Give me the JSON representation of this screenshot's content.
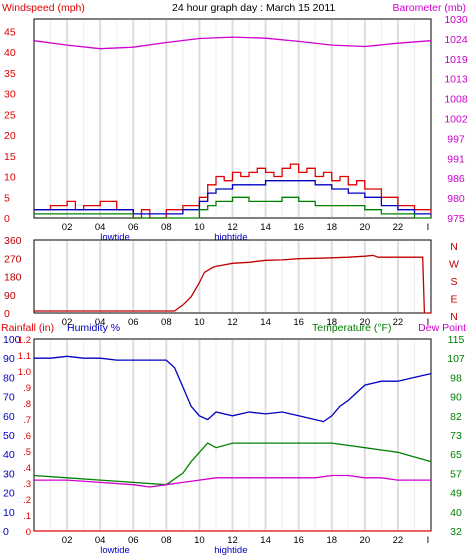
{
  "header": {
    "windspeed_label": "Windspeed (mph)",
    "title": "24 hour graph day : March 15 2011",
    "barometer_label": "Barometer (mb)"
  },
  "panel3_labels": {
    "rainfall": "Rainfall (in)",
    "humidity": "Humidity %",
    "temperature": "Temperature (°F)",
    "dewpoint": "Dew Point"
  },
  "tide_labels": [
    {
      "text": "lowtide",
      "hour": 4.9
    },
    {
      "text": "hightide",
      "hour": 11.9
    }
  ],
  "colors": {
    "wind_gust": "#e00000",
    "wind_avg": "#0000c0",
    "wind_low": "#008000",
    "barometer": "#d000d0",
    "direction": "#c00000",
    "humidity": "#0000c0",
    "temperature": "#008000",
    "dewpoint": "#d000d0",
    "rainfall": "#e00000",
    "grid": "#cccccc"
  },
  "chart_data": [
    {
      "type": "line",
      "x_ticks": [
        "02",
        "04",
        "06",
        "08",
        "10",
        "12",
        "14",
        "16",
        "18",
        "20",
        "22",
        "I"
      ],
      "x_tick_hours": [
        2,
        4,
        6,
        8,
        10,
        12,
        14,
        16,
        18,
        20,
        22,
        24
      ],
      "xlim": [
        0,
        24
      ],
      "y_ticks": [
        "0",
        "5",
        "10",
        "15",
        "20",
        "25",
        "30",
        "35",
        "40",
        "45"
      ],
      "ylim": [
        0,
        48
      ],
      "y2_ticks": [
        "975",
        "980",
        "986",
        "991",
        "997",
        "1002",
        "1008",
        "1013",
        "1019",
        "1024",
        "1030"
      ],
      "y2lim": [
        975,
        1030
      ],
      "series": [
        {
          "name": "Windspeed (mph)",
          "axis": "left",
          "color_key": "wind_gust",
          "x": [
            0,
            1,
            2,
            2.5,
            3,
            4,
            5,
            6,
            6.5,
            7,
            8,
            9,
            10,
            10.5,
            11,
            11.5,
            12,
            12.5,
            13,
            13.5,
            14,
            14.5,
            15,
            15.5,
            16,
            16.5,
            17,
            17.5,
            18,
            18.5,
            19,
            19.5,
            20,
            21,
            22,
            23,
            24
          ],
          "y": [
            2,
            3,
            4,
            2,
            3,
            4,
            2,
            0,
            2,
            0,
            2,
            3,
            5,
            8,
            10,
            9,
            11,
            10,
            11,
            12,
            11,
            10,
            12,
            13,
            11,
            12,
            10,
            11,
            9,
            10,
            8,
            9,
            7,
            5,
            3,
            2,
            1
          ]
        },
        {
          "name": "wind_avg",
          "axis": "left",
          "color_key": "wind_avg",
          "x": [
            0,
            2,
            4,
            6,
            8,
            9,
            10,
            10.5,
            11,
            12,
            13,
            14,
            15,
            16,
            17,
            18,
            19,
            20,
            21,
            22,
            23,
            24
          ],
          "y": [
            2,
            2,
            2,
            1,
            1,
            2,
            4,
            6,
            7,
            8,
            8,
            9,
            9,
            9,
            8,
            7,
            6,
            5,
            3,
            2,
            1,
            1
          ]
        },
        {
          "name": "wind_low",
          "axis": "left",
          "color_key": "wind_low",
          "x": [
            0,
            2,
            4,
            6,
            8,
            9,
            10,
            10.5,
            11,
            12,
            13,
            14,
            15,
            16,
            17,
            18,
            19,
            20,
            21,
            22,
            23,
            24
          ],
          "y": [
            1,
            1,
            1,
            0,
            0,
            0,
            2,
            3,
            4,
            5,
            4,
            4,
            5,
            4,
            3,
            3,
            3,
            2,
            1,
            1,
            0,
            0
          ]
        },
        {
          "name": "Barometer (mb)",
          "axis": "right",
          "color_key": "barometer",
          "x": [
            0,
            2,
            4,
            6,
            8,
            10,
            12,
            14,
            16,
            18,
            20,
            22,
            24
          ],
          "y": [
            1024,
            1022.8,
            1021.8,
            1022.2,
            1023.5,
            1024.6,
            1025,
            1024.7,
            1023.8,
            1022.8,
            1022.4,
            1023.3,
            1024
          ]
        }
      ]
    },
    {
      "type": "line",
      "x_ticks": [
        "02",
        "04",
        "06",
        "08",
        "10",
        "12",
        "14",
        "16",
        "18",
        "20",
        "22",
        "I"
      ],
      "xlim": [
        0,
        24
      ],
      "y_ticks": [
        "0",
        "90",
        "180",
        "270",
        "360"
      ],
      "ylim": [
        0,
        360
      ],
      "y2_ticks": [
        "N",
        "W",
        "S",
        "E",
        "N"
      ],
      "series": [
        {
          "name": "wind_direction",
          "color_key": "direction",
          "x": [
            0,
            8.5,
            9,
            9.5,
            10,
            10.3,
            10.8,
            11,
            12,
            13,
            14,
            15,
            16,
            17,
            18,
            19,
            20,
            20.5,
            20.8,
            21,
            22,
            23,
            23.5,
            23.6,
            24
          ],
          "y": [
            10,
            10,
            40,
            80,
            150,
            200,
            225,
            230,
            245,
            250,
            260,
            262,
            268,
            270,
            272,
            275,
            280,
            284,
            275,
            275,
            275,
            275,
            275,
            0,
            0
          ]
        }
      ]
    },
    {
      "type": "line",
      "x_ticks": [
        "02",
        "04",
        "06",
        "08",
        "10",
        "12",
        "14",
        "16",
        "18",
        "20",
        "22",
        "I"
      ],
      "xlim": [
        0,
        24
      ],
      "y_ticks_humidity": [
        "0",
        "10",
        "20",
        "30",
        "40",
        "50",
        "60",
        "70",
        "80",
        "90",
        "100"
      ],
      "ylim_humidity": [
        0,
        100
      ],
      "y_ticks_rainfall": [
        "0",
        ".1",
        ".2",
        ".3",
        ".4",
        ".5",
        ".6",
        ".7",
        ".8",
        ".9",
        "1.0",
        "1.1",
        "1.2"
      ],
      "ylim_rainfall": [
        0,
        1.2
      ],
      "y2_ticks": [
        "32",
        "40",
        "49",
        "57",
        "65",
        "73",
        "82",
        "90",
        "98",
        "107",
        "115"
      ],
      "y2lim": [
        32,
        115
      ],
      "series": [
        {
          "name": "Humidity %",
          "axis": "humidity",
          "color_key": "humidity",
          "x": [
            0,
            1,
            2,
            3,
            4,
            5,
            6,
            7,
            8,
            8.5,
            9,
            9.5,
            10,
            10.5,
            11,
            12,
            13,
            14,
            15,
            16,
            17,
            17.5,
            18,
            18.5,
            19,
            20,
            21,
            22,
            23,
            24
          ],
          "y": [
            90,
            90,
            91,
            90,
            90,
            89,
            89,
            89,
            89,
            85,
            75,
            65,
            60,
            58,
            62,
            60,
            62,
            61,
            62,
            60,
            58,
            57,
            60,
            65,
            68,
            76,
            78,
            78,
            80,
            82
          ]
        },
        {
          "name": "Temperature (°F)",
          "axis": "right",
          "color_key": "temperature",
          "x": [
            0,
            2,
            4,
            6,
            8,
            9,
            9.5,
            10,
            10.5,
            11,
            12,
            13,
            14,
            15,
            16,
            17,
            18,
            19,
            20,
            21,
            22,
            23,
            24
          ],
          "y": [
            56,
            55,
            54,
            53,
            52,
            57,
            62,
            66,
            70,
            68,
            70,
            70,
            70,
            70,
            70,
            70,
            70,
            69,
            68,
            67,
            66,
            64,
            62
          ]
        },
        {
          "name": "Dew Point",
          "axis": "right",
          "color_key": "dewpoint",
          "x": [
            0,
            2,
            4,
            6,
            7,
            8,
            9,
            10,
            11,
            12,
            13,
            14,
            15,
            16,
            17,
            18,
            19,
            20,
            21,
            22,
            23,
            24
          ],
          "y": [
            54,
            54,
            53,
            52,
            51,
            52,
            53,
            54,
            55,
            55,
            55,
            55,
            55,
            55,
            55,
            56,
            56,
            55,
            55,
            54,
            54,
            54
          ]
        },
        {
          "name": "Rainfall (in)",
          "axis": "rainfall",
          "color_key": "rainfall",
          "x": [
            0,
            24
          ],
          "y": [
            0,
            0
          ]
        }
      ]
    }
  ]
}
